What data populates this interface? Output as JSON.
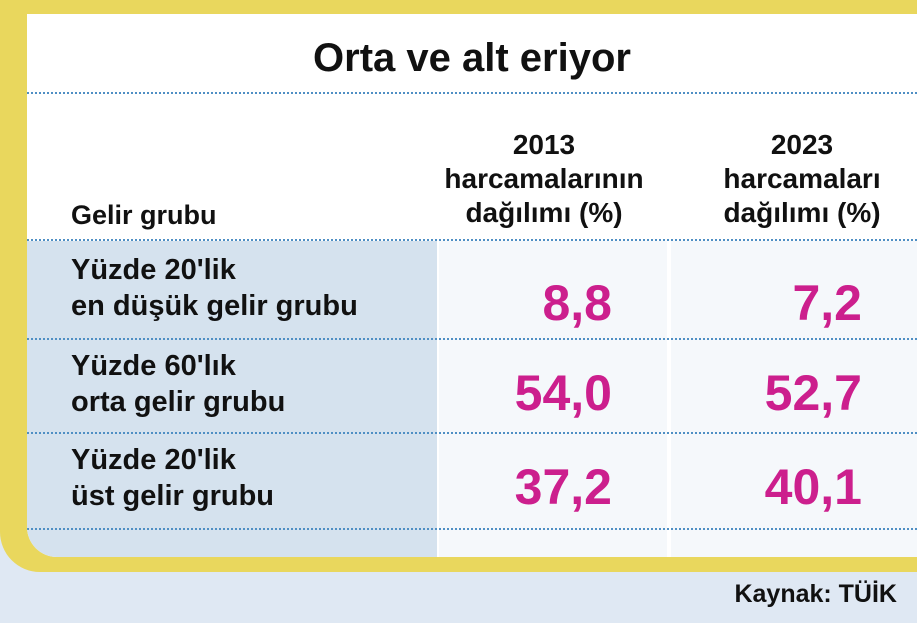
{
  "title": "Orta ve alt eriyor",
  "headers": {
    "group": "Gelir grubu",
    "col2013": [
      "2013",
      "harcamalarının",
      "dağılımı (%)"
    ],
    "col2023": [
      "2023",
      "harcamaları",
      "dağılımı (%)"
    ]
  },
  "rows": [
    {
      "label": [
        "Yüzde 20'lik",
        "en düşük gelir grubu"
      ],
      "v2013": "8,8",
      "v2023": "7,2"
    },
    {
      "label": [
        "Yüzde 60'lık",
        "orta gelir grubu"
      ],
      "v2013": "54,0",
      "v2023": "52,7"
    },
    {
      "label": [
        "Yüzde 20'lik",
        "üst gelir grubu"
      ],
      "v2013": "37,2",
      "v2023": "40,1"
    }
  ],
  "source": "Kaynak: TÜİK",
  "colors": {
    "frame": "#e9d75d",
    "value": "#cc1f8d",
    "label_bg": "#d5e2ee",
    "value_bg": "#f5f8fb",
    "page_bg": "#dfe8f3"
  },
  "chart_data": {
    "type": "table",
    "title": "Orta ve alt eriyor",
    "columns": [
      "Gelir grubu",
      "2013 harcamalarının dağılımı (%)",
      "2023 harcamaları dağılımı (%)"
    ],
    "rows": [
      [
        "Yüzde 20'lik en düşük gelir grubu",
        8.8,
        7.2
      ],
      [
        "Yüzde 60'lık orta gelir grubu",
        54.0,
        52.7
      ],
      [
        "Yüzde 20'lik üst gelir grubu",
        37.2,
        40.1
      ]
    ]
  }
}
